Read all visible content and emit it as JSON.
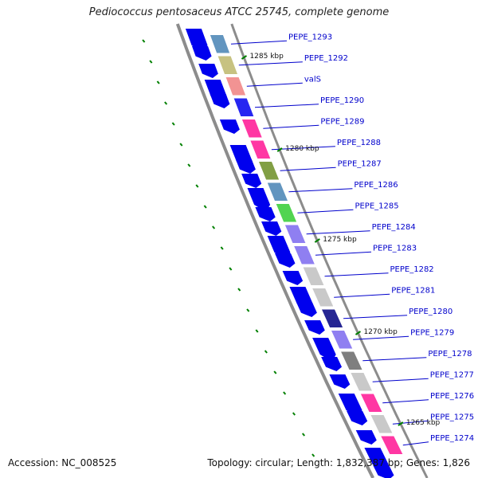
{
  "title": "Pediococcus pentosaceus ATCC 25745, complete genome",
  "footer": {
    "accession": "Accession: NC_008525",
    "stats": "Topology: circular; Length: 1,832,387 bp; Genes: 1,826"
  },
  "colors": {
    "backbone": "#8c8c8c",
    "cds": "#0000ee",
    "label": "#0000cc",
    "tick": "#008000"
  },
  "ticks": [
    "1285 kbp",
    "1280 kbp",
    "1275 kbp",
    "1270 kbp",
    "1265 kbp"
  ],
  "genes": [
    {
      "name": "PEPE_1293",
      "color": "#4682b4"
    },
    {
      "name": "PEPE_1292",
      "color": "#bdb76b"
    },
    {
      "name": "valS",
      "color": "#f08080"
    },
    {
      "name": "PEPE_1290",
      "color": "#0000ee"
    },
    {
      "name": "PEPE_1289",
      "color": "#ff1493"
    },
    {
      "name": "PEPE_1288",
      "color": "#ff1493"
    },
    {
      "name": "PEPE_1287",
      "color": "#6b8e23"
    },
    {
      "name": "PEPE_1286",
      "color": "#4682b4"
    },
    {
      "name": "PEPE_1285",
      "color": "#32cd32"
    },
    {
      "name": "PEPE_1284",
      "color": "#7b68ee"
    },
    {
      "name": "PEPE_1283",
      "color": "#7b68ee"
    },
    {
      "name": "PEPE_1282",
      "color": "#c0c0c0"
    },
    {
      "name": "PEPE_1281",
      "color": "#c0c0c0"
    },
    {
      "name": "PEPE_1280",
      "color": "#000080"
    },
    {
      "name": "PEPE_1279",
      "color": "#7b68ee"
    },
    {
      "name": "PEPE_1278",
      "color": "#696969"
    },
    {
      "name": "PEPE_1277",
      "color": "#c0c0c0"
    },
    {
      "name": "PEPE_1276",
      "color": "#ff1493"
    },
    {
      "name": "PEPE_1275",
      "color": "#c0c0c0"
    },
    {
      "name": "PEPE_1274",
      "color": "#ff1493"
    }
  ]
}
